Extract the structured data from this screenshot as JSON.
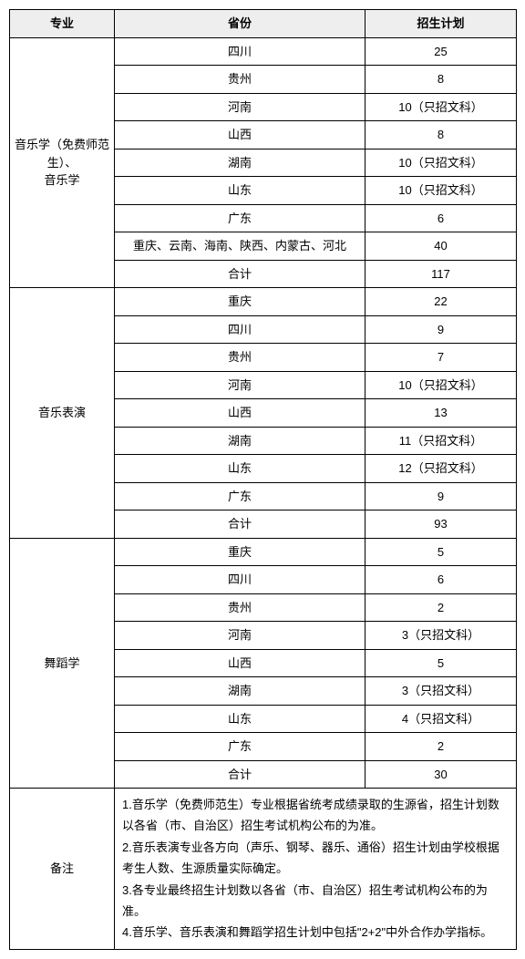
{
  "header": {
    "major": "专业",
    "province": "省份",
    "plan": "招生计划"
  },
  "sections": [
    {
      "major": "音乐学（免费师范生）、\n音乐学",
      "rows": [
        {
          "province": "四川",
          "plan": "25"
        },
        {
          "province": "贵州",
          "plan": "8"
        },
        {
          "province": "河南",
          "plan": "10（只招文科）"
        },
        {
          "province": "山西",
          "plan": "8"
        },
        {
          "province": "湖南",
          "plan": "10（只招文科）"
        },
        {
          "province": "山东",
          "plan": "10（只招文科）"
        },
        {
          "province": "广东",
          "plan": "6"
        },
        {
          "province": "重庆、云南、海南、陕西、内蒙古、河北",
          "plan": "40"
        },
        {
          "province": "合计",
          "plan": "117"
        }
      ]
    },
    {
      "major": "音乐表演",
      "rows": [
        {
          "province": "重庆",
          "plan": "22"
        },
        {
          "province": "四川",
          "plan": "9"
        },
        {
          "province": "贵州",
          "plan": "7"
        },
        {
          "province": "河南",
          "plan": "10（只招文科）"
        },
        {
          "province": "山西",
          "plan": "13"
        },
        {
          "province": "湖南",
          "plan": "11（只招文科）"
        },
        {
          "province": "山东",
          "plan": "12（只招文科）"
        },
        {
          "province": "广东",
          "plan": "9"
        },
        {
          "province": "合计",
          "plan": "93"
        }
      ]
    },
    {
      "major": "舞蹈学",
      "rows": [
        {
          "province": "重庆",
          "plan": "5"
        },
        {
          "province": "四川",
          "plan": "6"
        },
        {
          "province": "贵州",
          "plan": "2"
        },
        {
          "province": "河南",
          "plan": "3（只招文科）"
        },
        {
          "province": "山西",
          "plan": "5"
        },
        {
          "province": "湖南",
          "plan": "3（只招文科）"
        },
        {
          "province": "山东",
          "plan": "4（只招文科）"
        },
        {
          "province": "广东",
          "plan": "2"
        },
        {
          "province": "合计",
          "plan": "30"
        }
      ]
    }
  ],
  "notes": {
    "label": "备注",
    "lines": [
      "1.音乐学（免费师范生）专业根据省统考成绩录取的生源省，招生计划数以各省（市、自治区）招生考试机构公布的为准。",
      "2.音乐表演专业各方向（声乐、钢琴、器乐、通俗）招生计划由学校根据考生人数、生源质量实际确定。",
      "3.各专业最终招生计划数以各省（市、自治区）招生考试机构公布的为准。",
      "4.音乐学、音乐表演和舞蹈学招生计划中包括\"2+2\"中外合作办学指标。"
    ]
  }
}
